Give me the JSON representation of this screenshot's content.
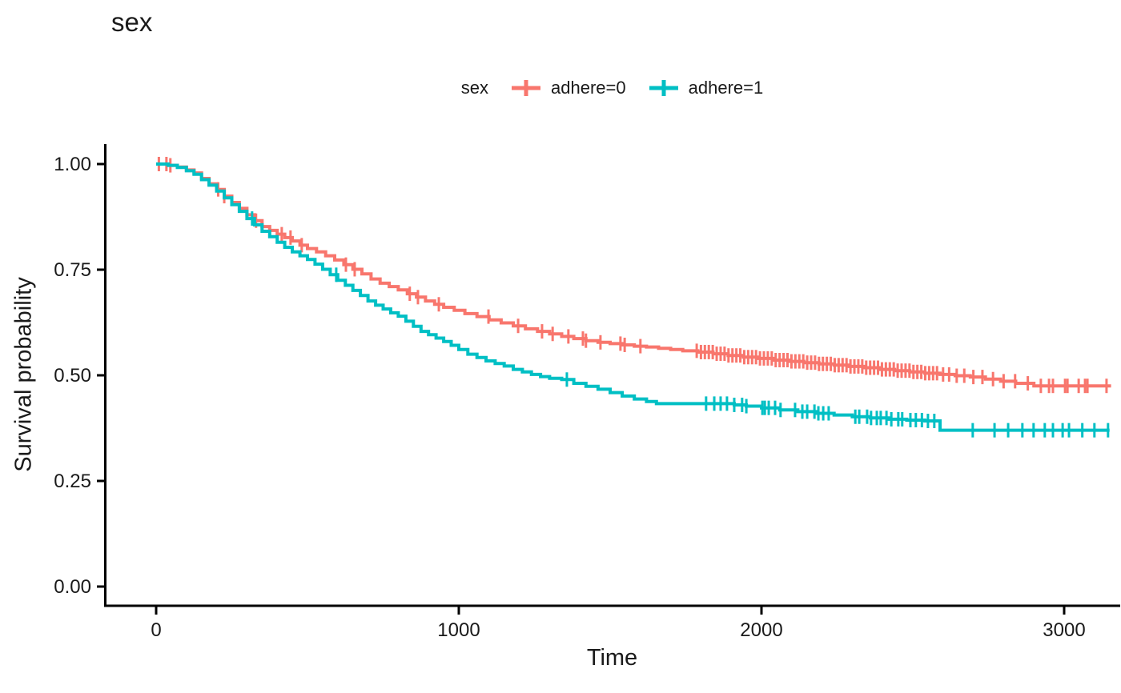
{
  "page": {
    "background": "#ffffff"
  },
  "chart_data": {
    "type": "line",
    "subtype": "kaplan-meier-step-curves",
    "title": "sex",
    "xlabel": "Time",
    "ylabel": "Survival probability",
    "xlim": [
      0,
      3155
    ],
    "ylim": [
      0,
      1
    ],
    "grid": false,
    "axis_color": "#000000",
    "text_color": "#1a1a1a",
    "legend": {
      "title": "sex",
      "position": "top"
    },
    "x_ticks": [
      {
        "value": 0,
        "label": "0"
      },
      {
        "value": 1000,
        "label": "1000"
      },
      {
        "value": 2000,
        "label": "2000"
      },
      {
        "value": 3000,
        "label": "3000"
      }
    ],
    "y_ticks": [
      {
        "value": 0.0,
        "label": "0.00"
      },
      {
        "value": 0.25,
        "label": "0.25"
      },
      {
        "value": 0.5,
        "label": "0.50"
      },
      {
        "value": 0.75,
        "label": "0.75"
      },
      {
        "value": 1.0,
        "label": "1.00"
      }
    ],
    "series": [
      {
        "name": "adhere=0",
        "color": "#F8766D",
        "end_time": 3155,
        "steps": [
          [
            0,
            1.0
          ],
          [
            40,
            0.997
          ],
          [
            70,
            0.993
          ],
          [
            100,
            0.986
          ],
          [
            125,
            0.979
          ],
          [
            150,
            0.966
          ],
          [
            175,
            0.953
          ],
          [
            200,
            0.94
          ],
          [
            225,
            0.924
          ],
          [
            250,
            0.909
          ],
          [
            275,
            0.895
          ],
          [
            300,
            0.88
          ],
          [
            325,
            0.866
          ],
          [
            350,
            0.852
          ],
          [
            375,
            0.843
          ],
          [
            400,
            0.834
          ],
          [
            425,
            0.826
          ],
          [
            450,
            0.818
          ],
          [
            475,
            0.808
          ],
          [
            500,
            0.8
          ],
          [
            530,
            0.792
          ],
          [
            560,
            0.783
          ],
          [
            590,
            0.773
          ],
          [
            620,
            0.762
          ],
          [
            650,
            0.751
          ],
          [
            680,
            0.74
          ],
          [
            710,
            0.728
          ],
          [
            740,
            0.718
          ],
          [
            770,
            0.71
          ],
          [
            800,
            0.702
          ],
          [
            830,
            0.693
          ],
          [
            860,
            0.685
          ],
          [
            890,
            0.676
          ],
          [
            920,
            0.668
          ],
          [
            950,
            0.661
          ],
          [
            985,
            0.654
          ],
          [
            1020,
            0.646
          ],
          [
            1060,
            0.639
          ],
          [
            1100,
            0.631
          ],
          [
            1140,
            0.624
          ],
          [
            1180,
            0.617
          ],
          [
            1220,
            0.61
          ],
          [
            1260,
            0.604
          ],
          [
            1300,
            0.598
          ],
          [
            1340,
            0.592
          ],
          [
            1380,
            0.587
          ],
          [
            1420,
            0.582
          ],
          [
            1460,
            0.578
          ],
          [
            1500,
            0.575
          ],
          [
            1540,
            0.572
          ],
          [
            1580,
            0.569
          ],
          [
            1620,
            0.567
          ],
          [
            1660,
            0.564
          ],
          [
            1700,
            0.561
          ],
          [
            1740,
            0.558
          ],
          [
            1790,
            0.555
          ],
          [
            1840,
            0.551
          ],
          [
            1890,
            0.547
          ],
          [
            1940,
            0.543
          ],
          [
            1990,
            0.54
          ],
          [
            2040,
            0.536
          ],
          [
            2090,
            0.533
          ],
          [
            2140,
            0.53
          ],
          [
            2190,
            0.527
          ],
          [
            2240,
            0.524
          ],
          [
            2290,
            0.521
          ],
          [
            2340,
            0.518
          ],
          [
            2390,
            0.514
          ],
          [
            2440,
            0.511
          ],
          [
            2490,
            0.508
          ],
          [
            2540,
            0.505
          ],
          [
            2590,
            0.502
          ],
          [
            2640,
            0.499
          ],
          [
            2690,
            0.496
          ],
          [
            2740,
            0.491
          ],
          [
            2790,
            0.486
          ],
          [
            2840,
            0.481
          ],
          [
            2900,
            0.475
          ]
        ],
        "censor_times": [
          9,
          34,
          47,
          205,
          225,
          330,
          415,
          444,
          481,
          627,
          656,
          838,
          865,
          934,
          1098,
          1196,
          1275,
          1310,
          1362,
          1410,
          1420,
          1468,
          1534,
          1548,
          1600,
          1786,
          1800,
          1813,
          1826,
          1839,
          1852,
          1865,
          1878,
          1891,
          1904,
          1917,
          1930,
          1943,
          1956,
          1969,
          1982,
          1995,
          2008,
          2021,
          2034,
          2047,
          2060,
          2073,
          2086,
          2099,
          2112,
          2125,
          2138,
          2151,
          2164,
          2177,
          2190,
          2203,
          2216,
          2229,
          2242,
          2255,
          2268,
          2281,
          2294,
          2307,
          2320,
          2333,
          2346,
          2359,
          2372,
          2385,
          2398,
          2411,
          2424,
          2437,
          2450,
          2463,
          2476,
          2489,
          2502,
          2515,
          2528,
          2541,
          2554,
          2567,
          2580,
          2600,
          2620,
          2645,
          2670,
          2700,
          2730,
          2765,
          2800,
          2838,
          2880,
          2923,
          2950,
          2963,
          3003,
          3011,
          3048,
          3069,
          3077,
          3140
        ]
      },
      {
        "name": "adhere=1",
        "color": "#00BFC4",
        "end_time": 3150,
        "steps": [
          [
            0,
            1.0
          ],
          [
            40,
            0.997
          ],
          [
            70,
            0.992
          ],
          [
            100,
            0.984
          ],
          [
            125,
            0.976
          ],
          [
            150,
            0.963
          ],
          [
            175,
            0.95
          ],
          [
            200,
            0.936
          ],
          [
            225,
            0.92
          ],
          [
            250,
            0.904
          ],
          [
            275,
            0.888
          ],
          [
            300,
            0.871
          ],
          [
            325,
            0.856
          ],
          [
            350,
            0.841
          ],
          [
            375,
            0.828
          ],
          [
            400,
            0.815
          ],
          [
            425,
            0.803
          ],
          [
            450,
            0.792
          ],
          [
            475,
            0.783
          ],
          [
            500,
            0.774
          ],
          [
            525,
            0.763
          ],
          [
            550,
            0.751
          ],
          [
            575,
            0.738
          ],
          [
            600,
            0.725
          ],
          [
            625,
            0.713
          ],
          [
            650,
            0.701
          ],
          [
            675,
            0.689
          ],
          [
            700,
            0.676
          ],
          [
            725,
            0.666
          ],
          [
            750,
            0.657
          ],
          [
            775,
            0.648
          ],
          [
            800,
            0.64
          ],
          [
            825,
            0.628
          ],
          [
            850,
            0.616
          ],
          [
            875,
            0.604
          ],
          [
            900,
            0.596
          ],
          [
            925,
            0.588
          ],
          [
            950,
            0.58
          ],
          [
            975,
            0.571
          ],
          [
            1000,
            0.561
          ],
          [
            1030,
            0.55
          ],
          [
            1060,
            0.542
          ],
          [
            1090,
            0.534
          ],
          [
            1120,
            0.528
          ],
          [
            1150,
            0.522
          ],
          [
            1180,
            0.514
          ],
          [
            1210,
            0.508
          ],
          [
            1240,
            0.502
          ],
          [
            1270,
            0.497
          ],
          [
            1300,
            0.493
          ],
          [
            1340,
            0.49
          ],
          [
            1380,
            0.481
          ],
          [
            1420,
            0.474
          ],
          [
            1460,
            0.467
          ],
          [
            1500,
            0.459
          ],
          [
            1540,
            0.451
          ],
          [
            1580,
            0.444
          ],
          [
            1620,
            0.438
          ],
          [
            1653,
            0.433
          ],
          [
            1910,
            0.43
          ],
          [
            1950,
            0.427
          ],
          [
            2000,
            0.423
          ],
          [
            2060,
            0.418
          ],
          [
            2120,
            0.414
          ],
          [
            2180,
            0.41
          ],
          [
            2240,
            0.406
          ],
          [
            2300,
            0.402
          ],
          [
            2360,
            0.399
          ],
          [
            2420,
            0.396
          ],
          [
            2480,
            0.394
          ],
          [
            2540,
            0.392
          ],
          [
            2590,
            0.37
          ]
        ],
        "censor_times": [
          317,
          595,
          1357,
          1817,
          1844,
          1865,
          1886,
          1910,
          1936,
          1950,
          2003,
          2011,
          2024,
          2045,
          2063,
          2111,
          2135,
          2151,
          2175,
          2188,
          2204,
          2222,
          2310,
          2323,
          2349,
          2362,
          2381,
          2394,
          2413,
          2429,
          2452,
          2465,
          2492,
          2510,
          2530,
          2550,
          2571,
          2698,
          2770,
          2815,
          2862,
          2899,
          2936,
          2963,
          2995,
          3016,
          3060,
          3100,
          3145
        ]
      }
    ]
  }
}
